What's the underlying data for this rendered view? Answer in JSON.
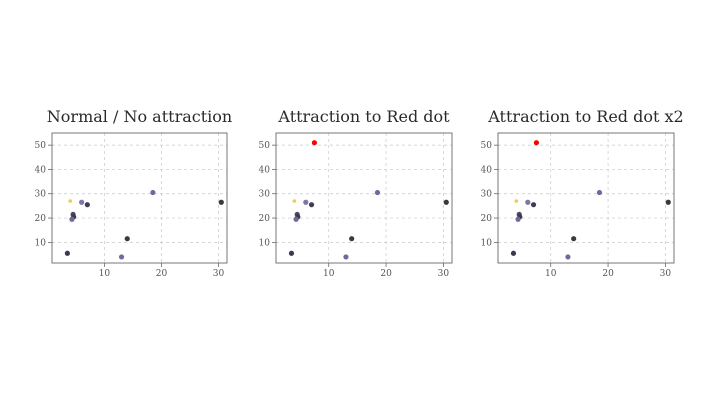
{
  "chart_data": [
    {
      "type": "scatter",
      "title": "Normal / No attraction",
      "xlabel": "",
      "ylabel": "",
      "xlim": [
        0.8,
        31.5
      ],
      "ylim": [
        1.5,
        55
      ],
      "xticks": [
        10,
        20,
        30
      ],
      "yticks": [
        10,
        20,
        30,
        40,
        50
      ],
      "xtick_labels": [
        "10",
        "20",
        "30"
      ],
      "ytick_labels": [
        "10",
        "20",
        "30",
        "40",
        "50"
      ],
      "grid": true,
      "points": [
        {
          "x": 4.0,
          "y": 27.0,
          "color": "#f2c94c"
        },
        {
          "x": 6.0,
          "y": 26.5,
          "color": "#7a78a6"
        },
        {
          "x": 7.0,
          "y": 25.5,
          "color": "#3e3e52"
        },
        {
          "x": 4.5,
          "y": 21.5,
          "color": "#4a4a60"
        },
        {
          "x": 4.6,
          "y": 20.5,
          "color": "#3a3a4e"
        },
        {
          "x": 4.3,
          "y": 19.5,
          "color": "#6d6b9c"
        },
        {
          "x": 18.5,
          "y": 30.5,
          "color": "#6d6b9c"
        },
        {
          "x": 30.5,
          "y": 26.5,
          "color": "#3a3a3a"
        },
        {
          "x": 14.0,
          "y": 11.5,
          "color": "#3a3a3a"
        },
        {
          "x": 3.5,
          "y": 5.5,
          "color": "#3a3a4e"
        },
        {
          "x": 13.0,
          "y": 4.0,
          "color": "#6d6b9c"
        }
      ]
    },
    {
      "type": "scatter",
      "title": "Attraction to Red dot",
      "xlabel": "",
      "ylabel": "",
      "xlim": [
        0.8,
        31.5
      ],
      "ylim": [
        1.5,
        55
      ],
      "xticks": [
        10,
        20,
        30
      ],
      "yticks": [
        10,
        20,
        30,
        40,
        50
      ],
      "xtick_labels": [
        "10",
        "20",
        "30"
      ],
      "ytick_labels": [
        "10",
        "20",
        "30",
        "40",
        "50"
      ],
      "grid": true,
      "points": [
        {
          "x": 7.5,
          "y": 51.0,
          "color": "#ff0000"
        },
        {
          "x": 4.0,
          "y": 27.0,
          "color": "#f2c94c"
        },
        {
          "x": 6.0,
          "y": 26.5,
          "color": "#7a78a6"
        },
        {
          "x": 7.0,
          "y": 25.5,
          "color": "#3e3e52"
        },
        {
          "x": 4.5,
          "y": 21.5,
          "color": "#4a4a60"
        },
        {
          "x": 4.6,
          "y": 20.5,
          "color": "#3a3a4e"
        },
        {
          "x": 4.3,
          "y": 19.5,
          "color": "#6d6b9c"
        },
        {
          "x": 18.5,
          "y": 30.5,
          "color": "#6d6b9c"
        },
        {
          "x": 30.5,
          "y": 26.5,
          "color": "#3a3a3a"
        },
        {
          "x": 14.0,
          "y": 11.5,
          "color": "#3a3a3a"
        },
        {
          "x": 3.5,
          "y": 5.5,
          "color": "#3a3a4e"
        },
        {
          "x": 13.0,
          "y": 4.0,
          "color": "#6d6b9c"
        }
      ]
    },
    {
      "type": "scatter",
      "title": "Attraction to Red dot x2",
      "xlabel": "",
      "ylabel": "",
      "xlim": [
        0.8,
        31.5
      ],
      "ylim": [
        1.5,
        55
      ],
      "xticks": [
        10,
        20,
        30
      ],
      "yticks": [
        10,
        20,
        30,
        40,
        50
      ],
      "xtick_labels": [
        "10",
        "20",
        "30"
      ],
      "ytick_labels": [
        "10",
        "20",
        "30",
        "40",
        "50"
      ],
      "grid": true,
      "points": [
        {
          "x": 7.5,
          "y": 51.0,
          "color": "#ff0000"
        },
        {
          "x": 4.0,
          "y": 27.0,
          "color": "#f2c94c"
        },
        {
          "x": 6.0,
          "y": 26.5,
          "color": "#7a78a6"
        },
        {
          "x": 7.0,
          "y": 25.5,
          "color": "#3e3e52"
        },
        {
          "x": 4.5,
          "y": 21.5,
          "color": "#4a4a60"
        },
        {
          "x": 4.6,
          "y": 20.5,
          "color": "#3a3a4e"
        },
        {
          "x": 4.3,
          "y": 19.5,
          "color": "#6d6b9c"
        },
        {
          "x": 18.5,
          "y": 30.5,
          "color": "#6d6b9c"
        },
        {
          "x": 30.5,
          "y": 26.5,
          "color": "#3a3a3a"
        },
        {
          "x": 14.0,
          "y": 11.5,
          "color": "#3a3a3a"
        },
        {
          "x": 3.5,
          "y": 5.5,
          "color": "#3a3a4e"
        },
        {
          "x": 13.0,
          "y": 4.0,
          "color": "#6d6b9c"
        }
      ]
    }
  ]
}
